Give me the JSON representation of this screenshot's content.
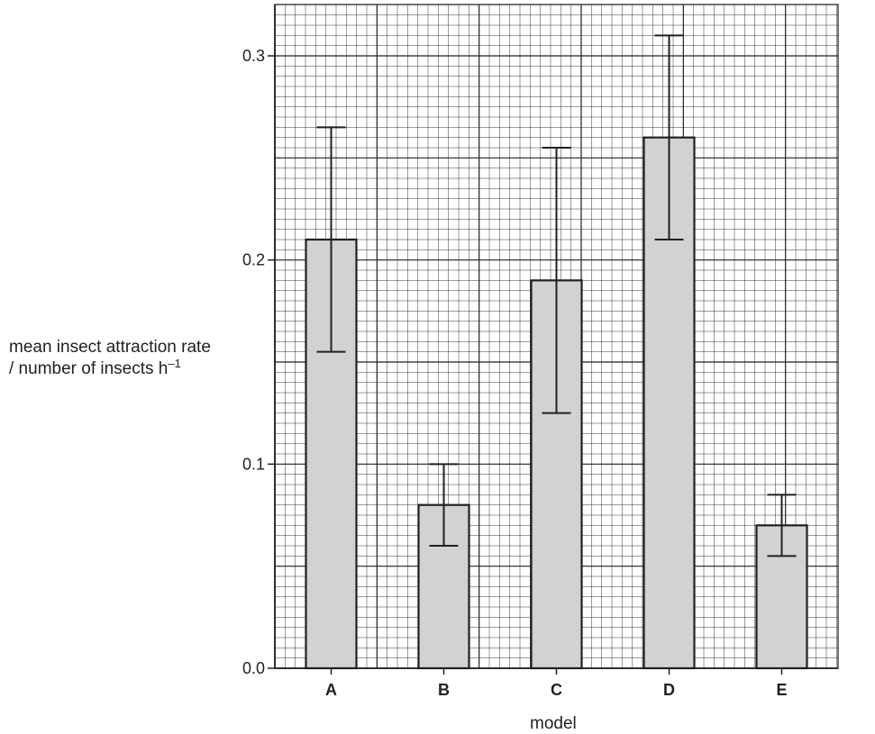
{
  "chart_data": {
    "type": "bar",
    "categories": [
      "A",
      "B",
      "C",
      "D",
      "E"
    ],
    "values": [
      0.21,
      0.08,
      0.19,
      0.26,
      0.07
    ],
    "error_bars": {
      "upper": [
        0.265,
        0.1,
        0.255,
        0.31,
        0.085
      ],
      "lower": [
        0.155,
        0.06,
        0.125,
        0.21,
        0.055
      ]
    },
    "ylabel": {
      "line1": "mean insect attraction rate",
      "line2_prefix": "/ number of insects h",
      "line2_superscript": "–1"
    },
    "xlabel": "model",
    "ylim": [
      0,
      0.3
    ],
    "yticks": [
      "0.0",
      "0.1",
      "0.2",
      "0.3"
    ],
    "grid": true,
    "bar_color": "#d1d2d4",
    "line_color": "#231f20"
  }
}
